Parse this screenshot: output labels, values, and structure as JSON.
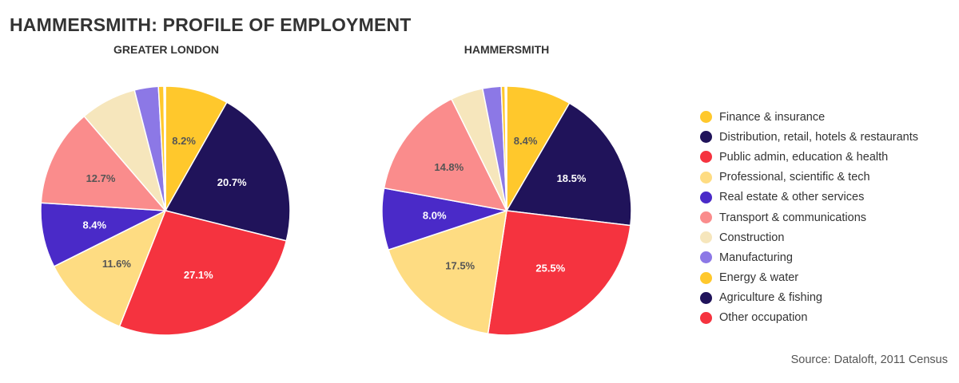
{
  "title": "HAMMERSMITH: PROFILE OF EMPLOYMENT",
  "source": "Source: Dataloft, 2011 Census",
  "chart_data": {
    "type": "pie",
    "categories": [
      "Finance & insurance",
      "Distribution, retail, hotels & restaurants",
      "Public admin, education & health",
      "Professional, scientific & tech",
      "Real estate & other services",
      "Transport & communications",
      "Construction",
      "Manufacturing",
      "Energy & water",
      "Agriculture & fishing",
      "Other occupation"
    ],
    "colors": [
      "#ffc82c",
      "#20135a",
      "#f5333f",
      "#fedc82",
      "#4a2ac8",
      "#fa8c8c",
      "#f6e6bc",
      "#8c78e6",
      "#ffc82c",
      "#20135a",
      "#f5333f"
    ],
    "legend_position": "right",
    "charts": [
      {
        "title": "GREATER LONDON",
        "values": [
          8.2,
          20.7,
          27.1,
          11.6,
          8.4,
          12.7,
          7.3,
          3.1,
          0.7,
          0.1,
          0.1
        ],
        "labels": [
          "8.2%",
          "20.7%",
          "27.1%",
          "11.6%",
          "8.4%",
          "12.7%",
          "",
          "",
          "",
          "",
          ""
        ]
      },
      {
        "title": "HAMMERSMITH",
        "values": [
          8.4,
          18.5,
          25.5,
          17.5,
          8.0,
          14.8,
          4.2,
          2.4,
          0.5,
          0.1,
          0.1
        ],
        "labels": [
          "8.4%",
          "18.5%",
          "25.5%",
          "17.5%",
          "8.0%",
          "14.8%",
          "",
          "",
          "",
          "",
          ""
        ]
      }
    ]
  }
}
